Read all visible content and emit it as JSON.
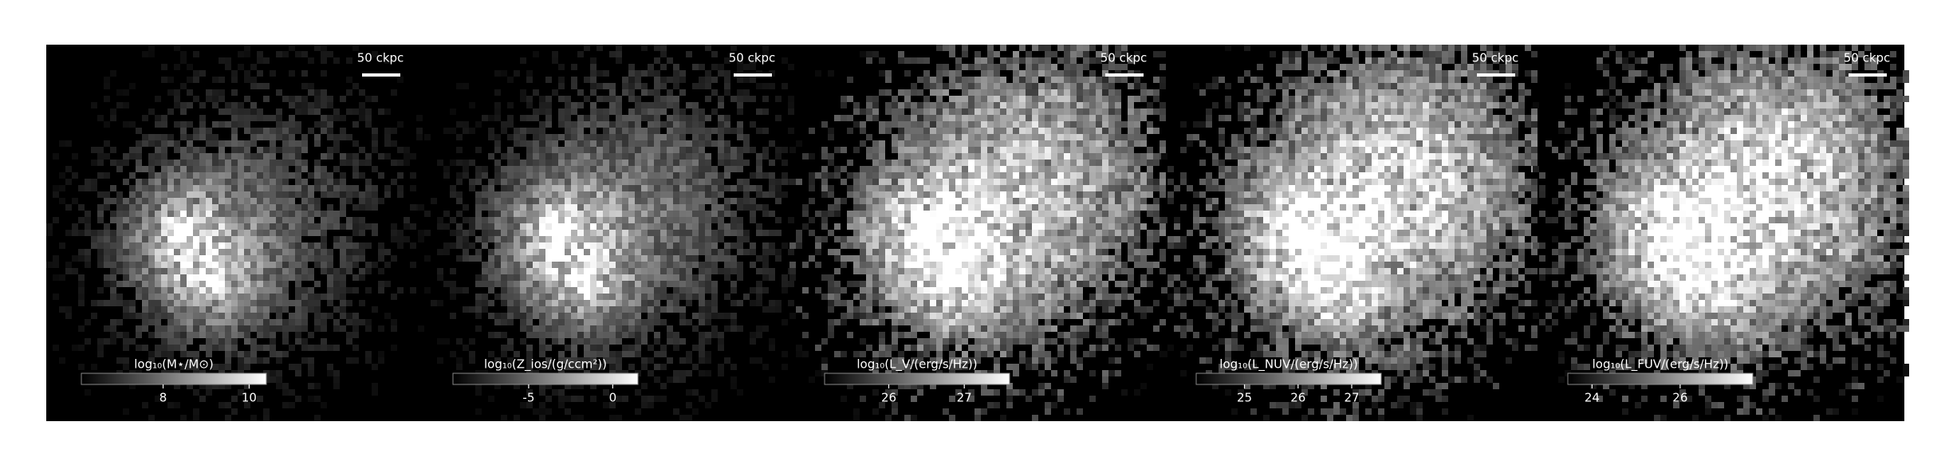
{
  "chart_data": [
    {
      "type": "image",
      "scalebar": "50 ckpc",
      "colorbar_label": "log₁₀(M⋆/M⊙)",
      "clim": [
        6.1,
        10.4
      ],
      "cticks": [
        8,
        10
      ],
      "cmap": "gray"
    },
    {
      "type": "image",
      "scalebar": "50 ckpc",
      "colorbar_label": "log₁₀(Z_ios/(g/ccm²))",
      "clim": [
        -9.5,
        1.5
      ],
      "cticks": [
        -5,
        0
      ],
      "cmap": "gray"
    },
    {
      "type": "image",
      "scalebar": "50 ckpc",
      "colorbar_label": "log₁₀(L_V/(erg/s/Hz))",
      "clim": [
        25.15,
        27.6
      ],
      "cticks": [
        26,
        27
      ],
      "cmap": "gray"
    },
    {
      "type": "image",
      "scalebar": "50 ckpc",
      "colorbar_label": "log₁₀(L_NUV/(erg/s/Hz))",
      "clim": [
        24.1,
        27.55
      ],
      "cticks": [
        25,
        26,
        27
      ],
      "cmap": "gray"
    },
    {
      "type": "image",
      "scalebar": "50 ckpc",
      "colorbar_label": "log₁₀(L_FUV/(erg/s/Hz))",
      "clim": [
        23.45,
        27.65
      ],
      "cticks": [
        24,
        26
      ],
      "cmap": "gray"
    }
  ]
}
